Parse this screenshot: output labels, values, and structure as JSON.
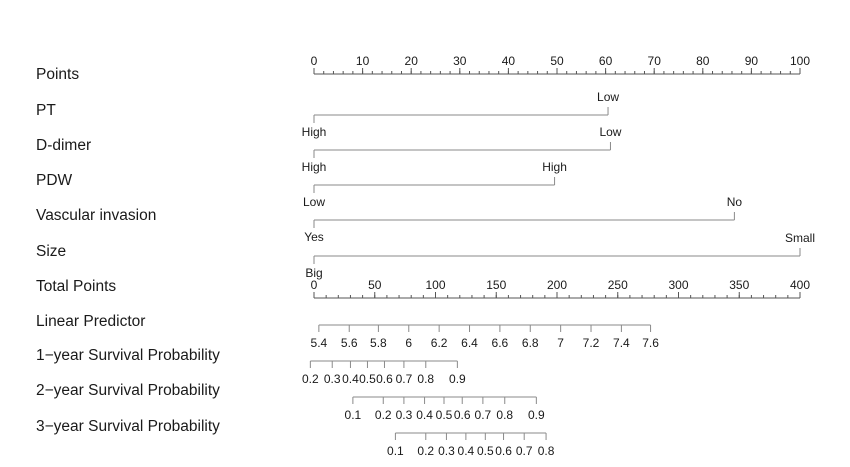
{
  "chart_data": {
    "type": "nomogram",
    "rows": [
      {
        "label": "Points",
        "kind": "axis",
        "ticks": [
          0,
          10,
          20,
          30,
          40,
          50,
          60,
          70,
          80,
          90,
          100
        ],
        "minor_step": 2
      },
      {
        "label": "PT",
        "kind": "factor",
        "levels": [
          {
            "label": "Low",
            "points": 60.5
          },
          {
            "label": "High",
            "points": 0
          }
        ]
      },
      {
        "label": "D-dimer",
        "kind": "factor",
        "levels": [
          {
            "label": "Low",
            "points": 61
          },
          {
            "label": "High",
            "points": 0
          }
        ]
      },
      {
        "label": "PDW",
        "kind": "factor",
        "levels": [
          {
            "label": "High",
            "points": 49.5
          },
          {
            "label": "Low",
            "points": 0
          }
        ]
      },
      {
        "label": "Vascular invasion",
        "kind": "factor",
        "levels": [
          {
            "label": "No",
            "points": 86.5
          },
          {
            "label": "Yes",
            "points": 0
          }
        ]
      },
      {
        "label": "Size",
        "kind": "factor",
        "levels": [
          {
            "label": "Small",
            "points": 100
          },
          {
            "label": "Big",
            "points": 0
          }
        ]
      },
      {
        "label": "Total Points",
        "kind": "axis",
        "ticks": [
          0,
          50,
          100,
          150,
          200,
          250,
          300,
          350,
          400
        ],
        "minor_step": 10
      },
      {
        "label": "Linear Predictor",
        "kind": "scale",
        "ticks": [
          {
            "label": "5.4",
            "total": 4
          },
          {
            "label": "5.6",
            "total": 29
          },
          {
            "label": "5.8",
            "total": 53
          },
          {
            "label": "6",
            "total": 78
          },
          {
            "label": "6.2",
            "total": 103
          },
          {
            "label": "6.4",
            "total": 128
          },
          {
            "label": "6.6",
            "total": 153
          },
          {
            "label": "6.8",
            "total": 178
          },
          {
            "label": "7",
            "total": 203
          },
          {
            "label": "7.2",
            "total": 228
          },
          {
            "label": "7.4",
            "total": 253
          },
          {
            "label": "7.6",
            "total": 277
          }
        ]
      },
      {
        "label": "1−year Survival Probability",
        "kind": "scale",
        "ticks": [
          {
            "label": "0.2",
            "total": -3
          },
          {
            "label": "0.3",
            "total": 15
          },
          {
            "label": "0.4",
            "total": 30
          },
          {
            "label": "0.5",
            "total": 44
          },
          {
            "label": "0.6",
            "total": 58
          },
          {
            "label": "0.7",
            "total": 74
          },
          {
            "label": "0.8",
            "total": 92
          },
          {
            "label": "0.9",
            "total": 118
          }
        ]
      },
      {
        "label": "2−year Survival Probability",
        "kind": "scale",
        "ticks": [
          {
            "label": "0.1",
            "total": 32
          },
          {
            "label": "0.2",
            "total": 57
          },
          {
            "label": "0.3",
            "total": 74
          },
          {
            "label": "0.4",
            "total": 91
          },
          {
            "label": "0.5",
            "total": 107
          },
          {
            "label": "0.6",
            "total": 122
          },
          {
            "label": "0.7",
            "total": 139
          },
          {
            "label": "0.8",
            "total": 157
          },
          {
            "label": "0.9",
            "total": 183
          }
        ]
      },
      {
        "label": "3−year Survival Probability",
        "kind": "scale",
        "ticks": [
          {
            "label": "0.1",
            "total": 67
          },
          {
            "label": "0.2",
            "total": 92
          },
          {
            "label": "0.3",
            "total": 109
          },
          {
            "label": "0.4",
            "total": 125
          },
          {
            "label": "0.5",
            "total": 141
          },
          {
            "label": "0.6",
            "total": 156
          },
          {
            "label": "0.7",
            "total": 173
          },
          {
            "label": "0.8",
            "total": 191
          }
        ]
      }
    ]
  }
}
